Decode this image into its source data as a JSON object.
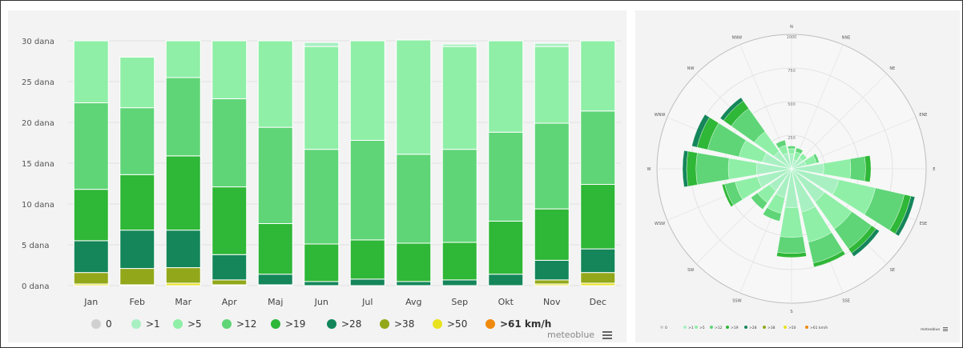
{
  "colors": {
    "0": "#d0d0d0",
    ">1": "#a8f0c2",
    ">5": "#8fefa7",
    ">12": "#5fd577",
    ">19": "#2fb737",
    ">28": "#14865a",
    ">38": "#92a81a",
    ">50": "#e8e21f",
    ">61 km/h": "#f08a0e"
  },
  "legend": {
    "labels": [
      "0",
      ">1",
      ">5",
      ">12",
      ">19",
      ">28",
      ">38",
      ">50",
      ">61 km/h"
    ],
    "brand": "meteoblue",
    "menu_icon": "hamburger-menu-icon"
  },
  "chart_data": [
    {
      "type": "bar",
      "stacked": true,
      "title": "",
      "xlabel": "",
      "ylabel": "",
      "ylim": [
        0,
        30
      ],
      "yticks": [
        "0 dana",
        "5 dana",
        "10 dana",
        "15 dana",
        "20 dana",
        "25 dana",
        "30 dana"
      ],
      "grid": true,
      "legend_position": "bottom",
      "categories": [
        "Jan",
        "Feb",
        "Mar",
        "Apr",
        "Maj",
        "Jun",
        "Jul",
        "Avg",
        "Sep",
        "Okt",
        "Nov",
        "Dec"
      ],
      "series": [
        {
          "name": "0",
          "values": [
            0,
            0,
            0,
            0,
            0,
            0,
            0,
            0,
            0,
            0,
            0,
            0
          ]
        },
        {
          "name": ">50",
          "values": [
            0.2,
            0.1,
            0.3,
            0.1,
            0,
            0,
            0,
            0,
            0,
            0,
            0.2,
            0.3
          ]
        },
        {
          "name": ">38",
          "values": [
            1.4,
            2.0,
            1.9,
            0.6,
            0.1,
            0,
            0,
            0,
            0,
            0,
            0.5,
            1.3
          ]
        },
        {
          "name": ">28",
          "values": [
            3.9,
            4.7,
            4.6,
            3.1,
            1.3,
            0.5,
            0.8,
            0.5,
            0.7,
            1.4,
            2.4,
            2.9
          ]
        },
        {
          "name": ">19",
          "values": [
            6.3,
            6.8,
            9.1,
            8.3,
            6.2,
            4.6,
            4.8,
            4.7,
            4.6,
            6.5,
            6.3,
            7.9
          ]
        },
        {
          "name": ">12",
          "values": [
            10.6,
            8.2,
            9.6,
            10.8,
            11.8,
            11.6,
            12.2,
            10.9,
            11.4,
            10.9,
            10.5,
            9.0
          ]
        },
        {
          "name": ">5",
          "values": [
            7.6,
            6.2,
            4.5,
            7.1,
            10.6,
            12.6,
            12.2,
            14.0,
            12.6,
            11.2,
            9.4,
            8.6
          ]
        },
        {
          "name": ">1",
          "values": [
            0,
            0,
            0,
            0,
            0,
            0.5,
            0,
            0,
            0.3,
            0,
            0.4,
            0
          ]
        }
      ]
    },
    {
      "type": "wind-rose",
      "title": "",
      "directions": [
        "N",
        "NNE",
        "NE",
        "ENE",
        "E",
        "ESE",
        "SE",
        "SSE",
        "S",
        "SSW",
        "SW",
        "WSW",
        "W",
        "WNW",
        "NW",
        "NNW"
      ],
      "radial_ticks": [
        "250",
        "500",
        "750",
        "1000"
      ],
      "rmax": 1000,
      "legend_position": "bottom",
      "series_order": [
        ">1",
        ">5",
        ">12",
        ">19",
        ">28",
        ">38",
        ">50",
        ">61 km/h"
      ],
      "sectors": [
        [
          110,
          40,
          20,
          0,
          0,
          0,
          0,
          0
        ],
        [
          70,
          60,
          30,
          0,
          0,
          0,
          0,
          0
        ],
        [
          100,
          40,
          0,
          0,
          0,
          0,
          0,
          0
        ],
        [
          110,
          80,
          20,
          0,
          0,
          0,
          0,
          0
        ],
        [
          240,
          200,
          110,
          40,
          0,
          0,
          0,
          0
        ],
        [
          360,
          280,
          220,
          50,
          30,
          0,
          0,
          0
        ],
        [
          300,
          250,
          180,
          40,
          30,
          0,
          0,
          0
        ],
        [
          330,
          230,
          160,
          30,
          0,
          0,
          0,
          0
        ],
        [
          290,
          220,
          120,
          30,
          0,
          0,
          0,
          0
        ],
        [
          220,
          120,
          60,
          0,
          0,
          0,
          0,
          0
        ],
        [
          200,
          110,
          60,
          0,
          0,
          0,
          0,
          0
        ],
        [
          260,
          170,
          80,
          20,
          0,
          0,
          0,
          0
        ],
        [
          260,
          210,
          240,
          70,
          30,
          0,
          0,
          0
        ],
        [
          220,
          180,
          240,
          80,
          40,
          0,
          0,
          0
        ],
        [
          160,
          180,
          210,
          70,
          30,
          0,
          0,
          0
        ],
        [
          120,
          60,
          40,
          0,
          0,
          0,
          0,
          0
        ]
      ]
    }
  ]
}
